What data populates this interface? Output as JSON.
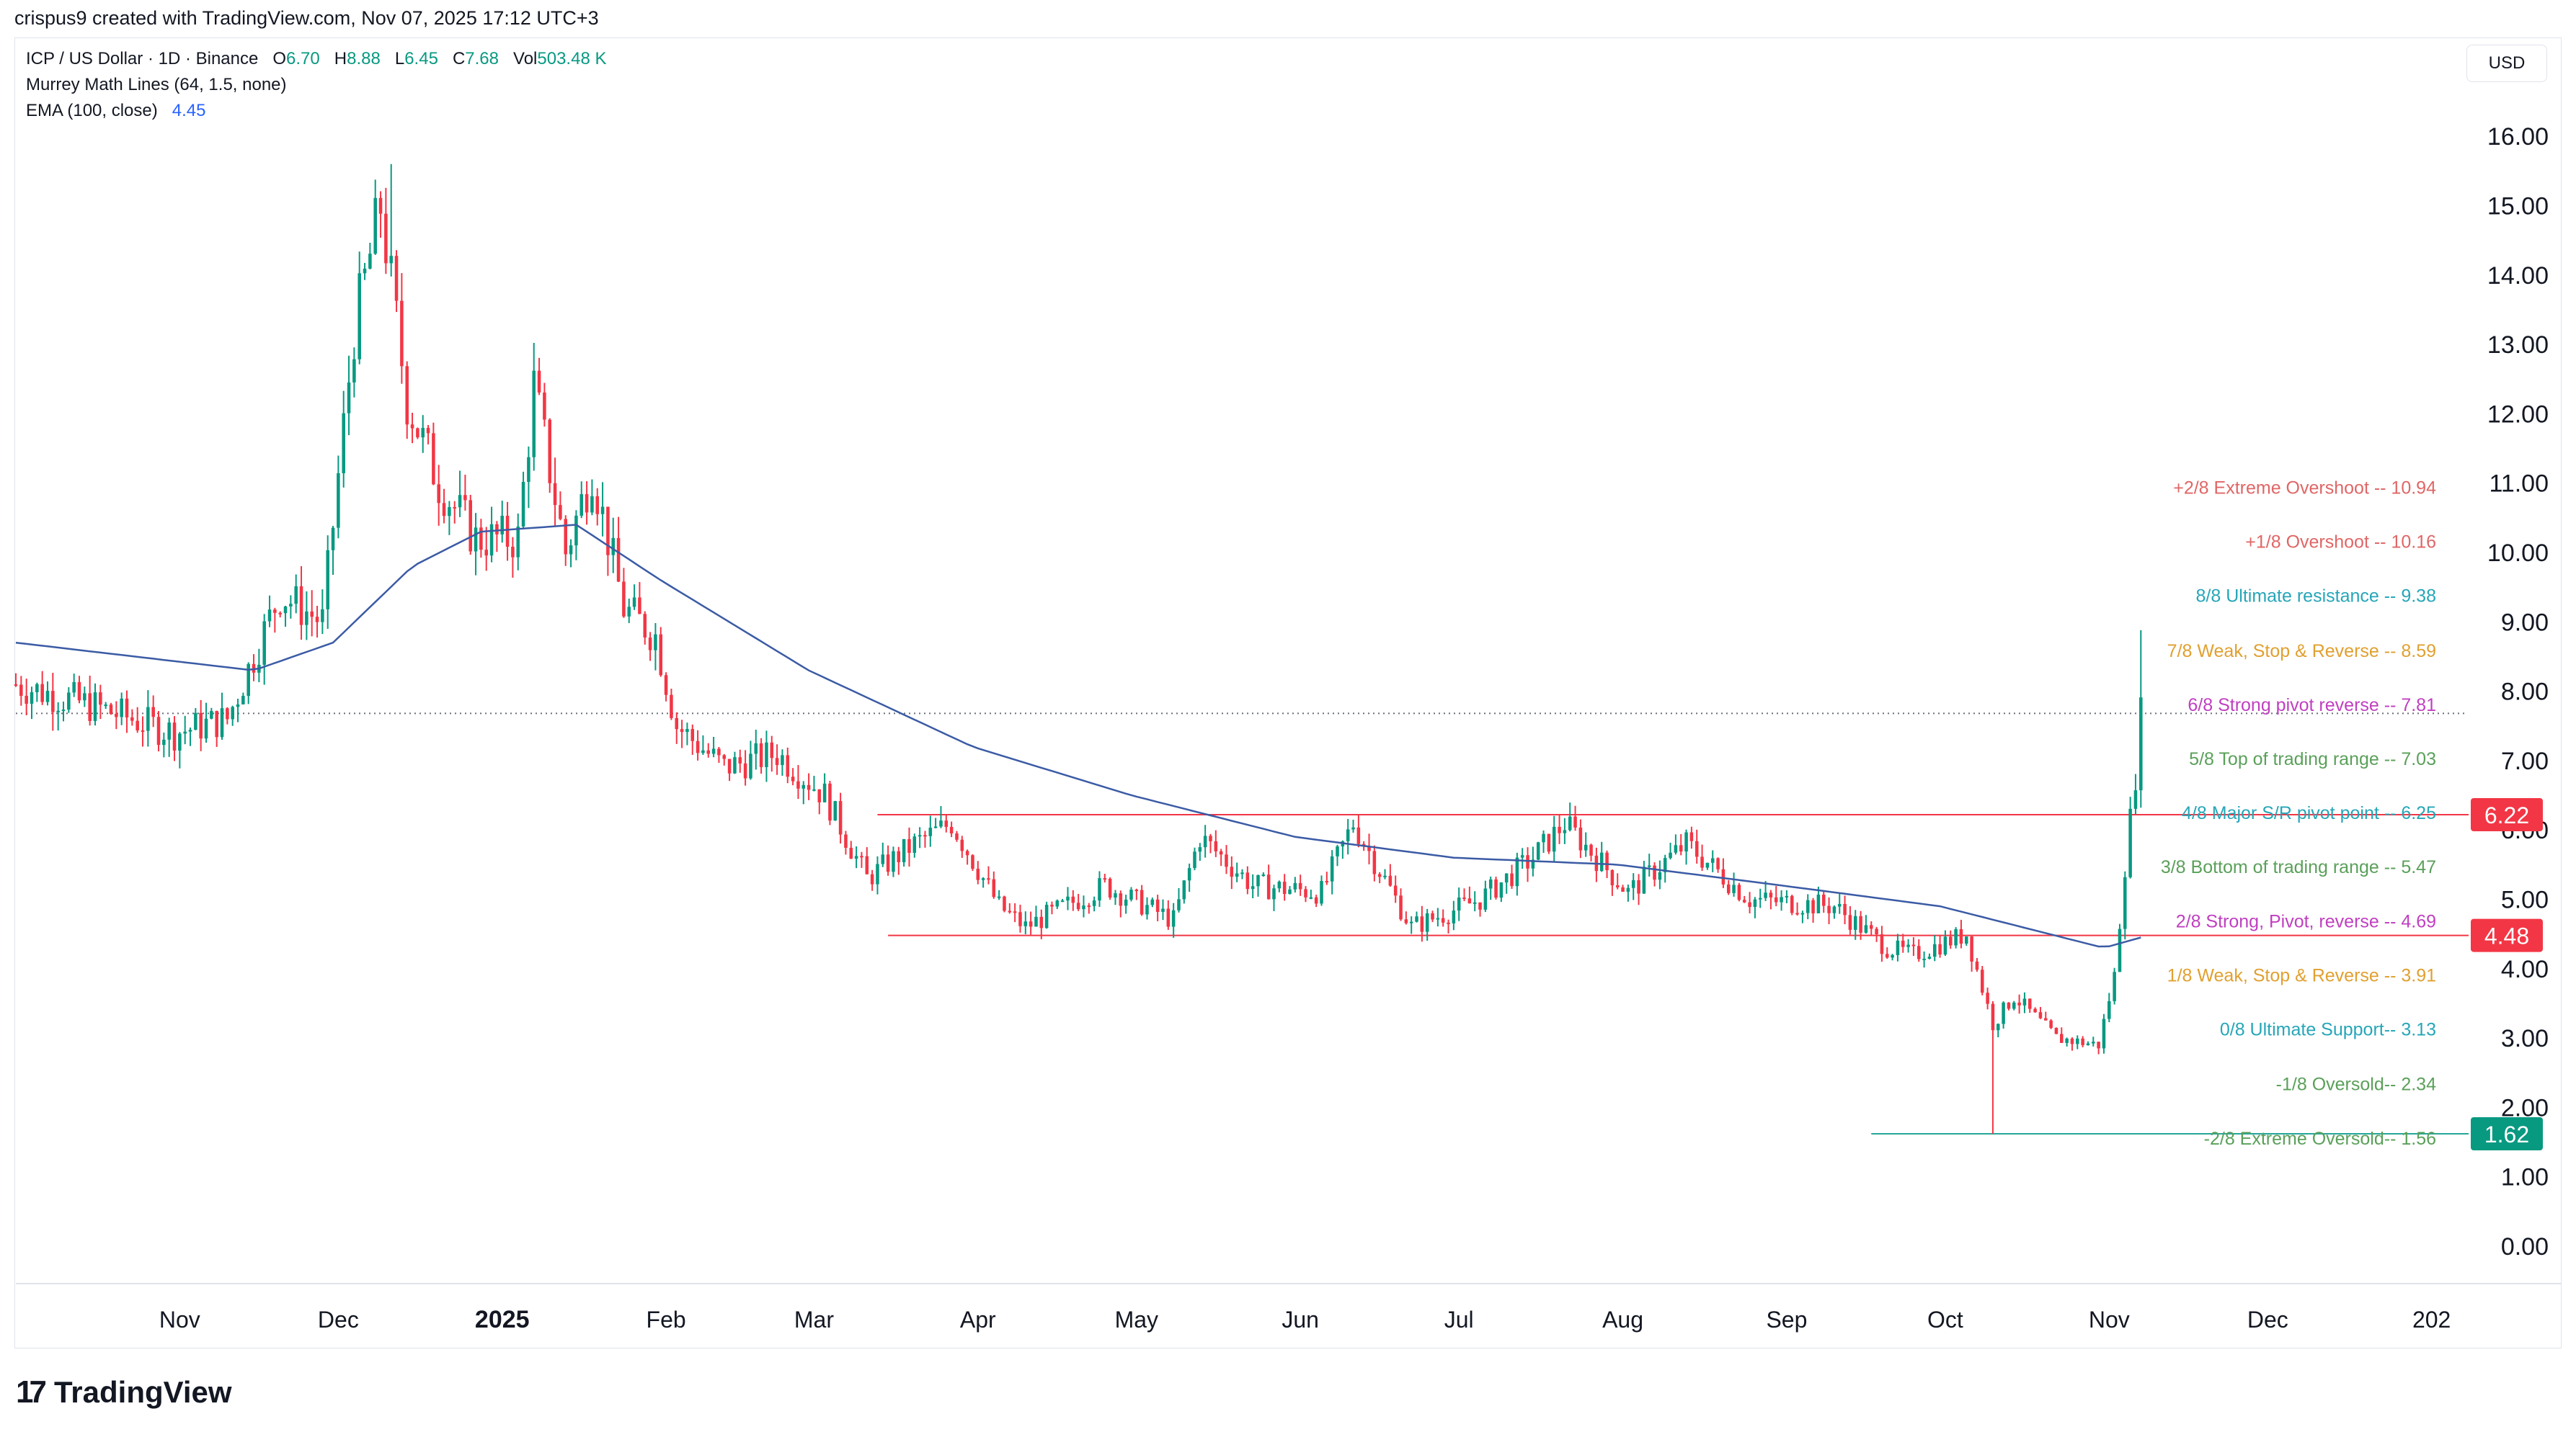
{
  "header": {
    "attribution": "crispus9 created with TradingView.com, Nov 07, 2025 17:12 UTC+3"
  },
  "legend": {
    "symbol": "ICP / US Dollar · 1D · Binance",
    "open_label": "O",
    "open": "6.70",
    "high_label": "H",
    "high": "8.88",
    "low_label": "L",
    "low": "6.45",
    "close_label": "C",
    "close": "7.68",
    "vol_label": "Vol",
    "vol": "503.48 K",
    "murrey": "Murrey Math Lines (64, 1.5, none)",
    "ema_label": "EMA (100, close)",
    "ema_value": "4.45"
  },
  "currency": "USD",
  "footer": {
    "brand": "TradingView"
  },
  "colors": {
    "up": "#089981",
    "down": "#f23645",
    "ema": "#3b5ba5",
    "hline": "#f23645",
    "support_line": "#26a69a"
  },
  "chart_data": {
    "type": "candlestick",
    "title": "ICP / US Dollar · 1D · Binance",
    "ylabel": "USD",
    "ylim": [
      -0.5,
      16.8
    ],
    "y_ticks": [
      "16.00",
      "15.00",
      "14.00",
      "13.00",
      "12.00",
      "11.00",
      "10.00",
      "9.00",
      "8.00",
      "7.00",
      "6.00",
      "5.00",
      "4.00",
      "3.00",
      "2.00",
      "1.00",
      "0.00"
    ],
    "x_ticks": [
      "Nov",
      "Dec",
      "2025",
      "Feb",
      "Mar",
      "Apr",
      "May",
      "Jun",
      "Jul",
      "Aug",
      "Sep",
      "Oct",
      "Nov",
      "Dec",
      "202"
    ],
    "price_tags": [
      {
        "value": 6.22,
        "label": "6.22",
        "color": "#f23645"
      },
      {
        "value": 4.48,
        "label": "4.48",
        "color": "#f23645"
      },
      {
        "value": 1.62,
        "label": "1.62",
        "color": "#089981"
      }
    ],
    "murrey_lines": [
      {
        "label": "+2/8 Extreme Overshoot --  10.94",
        "value": 10.94,
        "color": "#e06666"
      },
      {
        "label": "+1/8 Overshoot --  10.16",
        "value": 10.16,
        "color": "#e06666"
      },
      {
        "label": "8/8 Ultimate resistance --  9.38",
        "value": 9.38,
        "color": "#26a6b8"
      },
      {
        "label": "7/8 Weak, Stop & Reverse --  8.59",
        "value": 8.59,
        "color": "#e0a030"
      },
      {
        "label": "6/8 Strong pivot reverse --  7.81",
        "value": 7.81,
        "color": "#c040c0"
      },
      {
        "label": "5/8 Top of trading range --  7.03",
        "value": 7.03,
        "color": "#5aa05a"
      },
      {
        "label": "4/8 Major S/R pivot point --  6.25",
        "value": 6.25,
        "color": "#26a6b8"
      },
      {
        "label": "3/8 Bottom of trading range --  5.47",
        "value": 5.47,
        "color": "#5aa05a"
      },
      {
        "label": "2/8 Strong, Pivot, reverse --  4.69",
        "value": 4.69,
        "color": "#c040c0"
      },
      {
        "label": "1/8 Weak, Stop & Reverse --  3.91",
        "value": 3.91,
        "color": "#e0a030"
      },
      {
        "label": "0/8 Ultimate Support--  3.13",
        "value": 3.13,
        "color": "#26a6b8"
      },
      {
        "label": "-1/8 Oversold--  2.34",
        "value": 2.34,
        "color": "#5aa05a"
      },
      {
        "label": "-2/8 Extreme Oversold--  1.56",
        "value": 1.56,
        "color": "#5aa05a"
      }
    ],
    "horizontal_lines": [
      {
        "value": 6.22,
        "from": "2025-03-13",
        "to": "2025-11-07"
      },
      {
        "value": 4.48,
        "from": "2025-03-15",
        "to": "2025-11-07"
      }
    ],
    "support_line": {
      "value": 1.62,
      "from": "2025-09-17",
      "to": "2025-11-07"
    },
    "last_close_line": 7.68,
    "key_points": [
      {
        "date": "2024-10-01",
        "close": 8.1
      },
      {
        "date": "2024-10-15",
        "close": 7.8
      },
      {
        "date": "2024-10-31",
        "close": 7.4
      },
      {
        "date": "2024-11-10",
        "close": 7.6
      },
      {
        "date": "2024-11-20",
        "close": 9.4
      },
      {
        "date": "2024-11-28",
        "close": 9.0
      },
      {
        "date": "2024-12-04",
        "close": 13.2
      },
      {
        "date": "2024-12-09",
        "close": 15.0
      },
      {
        "date": "2024-12-14",
        "close": 12.2
      },
      {
        "date": "2024-12-20",
        "close": 11.0
      },
      {
        "date": "2024-12-27",
        "close": 10.2
      },
      {
        "date": "2025-01-04",
        "close": 10.2
      },
      {
        "date": "2025-01-07",
        "close": 12.4
      },
      {
        "date": "2025-01-13",
        "close": 10.0
      },
      {
        "date": "2025-01-18",
        "close": 11.2
      },
      {
        "date": "2025-01-24",
        "close": 9.2
      },
      {
        "date": "2025-01-30",
        "close": 8.8
      },
      {
        "date": "2025-02-03",
        "close": 7.5
      },
      {
        "date": "2025-02-12",
        "close": 6.9
      },
      {
        "date": "2025-02-22",
        "close": 7.1
      },
      {
        "date": "2025-03-03",
        "close": 6.5
      },
      {
        "date": "2025-03-11",
        "close": 5.3
      },
      {
        "date": "2025-03-20",
        "close": 5.8
      },
      {
        "date": "2025-03-27",
        "close": 6.1
      },
      {
        "date": "2025-04-05",
        "close": 4.9
      },
      {
        "date": "2025-04-10",
        "close": 4.6
      },
      {
        "date": "2025-04-25",
        "close": 5.2
      },
      {
        "date": "2025-05-08",
        "close": 4.7
      },
      {
        "date": "2025-05-13",
        "close": 5.9
      },
      {
        "date": "2025-05-23",
        "close": 5.2
      },
      {
        "date": "2025-06-05",
        "close": 5.1
      },
      {
        "date": "2025-06-11",
        "close": 6.1
      },
      {
        "date": "2025-06-22",
        "close": 4.6
      },
      {
        "date": "2025-07-05",
        "close": 5.0
      },
      {
        "date": "2025-07-15",
        "close": 5.6
      },
      {
        "date": "2025-07-21",
        "close": 6.1
      },
      {
        "date": "2025-08-02",
        "close": 5.1
      },
      {
        "date": "2025-08-13",
        "close": 5.8
      },
      {
        "date": "2025-08-25",
        "close": 5.0
      },
      {
        "date": "2025-09-10",
        "close": 4.9
      },
      {
        "date": "2025-09-20",
        "close": 4.3
      },
      {
        "date": "2025-09-25",
        "close": 4.2
      },
      {
        "date": "2025-10-05",
        "close": 4.5
      },
      {
        "date": "2025-10-10",
        "close": 3.2
      },
      {
        "date": "2025-10-14",
        "close": 3.6
      },
      {
        "date": "2025-10-22",
        "close": 3.0
      },
      {
        "date": "2025-10-30",
        "close": 2.9
      },
      {
        "date": "2025-11-02",
        "close": 3.9
      },
      {
        "date": "2025-11-04",
        "close": 5.5
      },
      {
        "date": "2025-11-06",
        "close": 6.8
      },
      {
        "date": "2025-11-07",
        "close": 7.68
      }
    ],
    "ema_points": [
      {
        "date": "2024-10-01",
        "value": 8.7
      },
      {
        "date": "2024-11-15",
        "value": 8.3
      },
      {
        "date": "2024-11-30",
        "value": 8.7
      },
      {
        "date": "2024-12-15",
        "value": 9.8
      },
      {
        "date": "2024-12-28",
        "value": 10.3
      },
      {
        "date": "2025-01-15",
        "value": 10.4
      },
      {
        "date": "2025-01-31",
        "value": 9.6
      },
      {
        "date": "2025-02-28",
        "value": 8.3
      },
      {
        "date": "2025-03-31",
        "value": 7.2
      },
      {
        "date": "2025-04-30",
        "value": 6.5
      },
      {
        "date": "2025-05-31",
        "value": 5.9
      },
      {
        "date": "2025-06-30",
        "value": 5.6
      },
      {
        "date": "2025-07-31",
        "value": 5.5
      },
      {
        "date": "2025-08-31",
        "value": 5.2
      },
      {
        "date": "2025-09-30",
        "value": 4.9
      },
      {
        "date": "2025-10-31",
        "value": 4.3
      },
      {
        "date": "2025-11-07",
        "value": 4.45
      }
    ]
  }
}
